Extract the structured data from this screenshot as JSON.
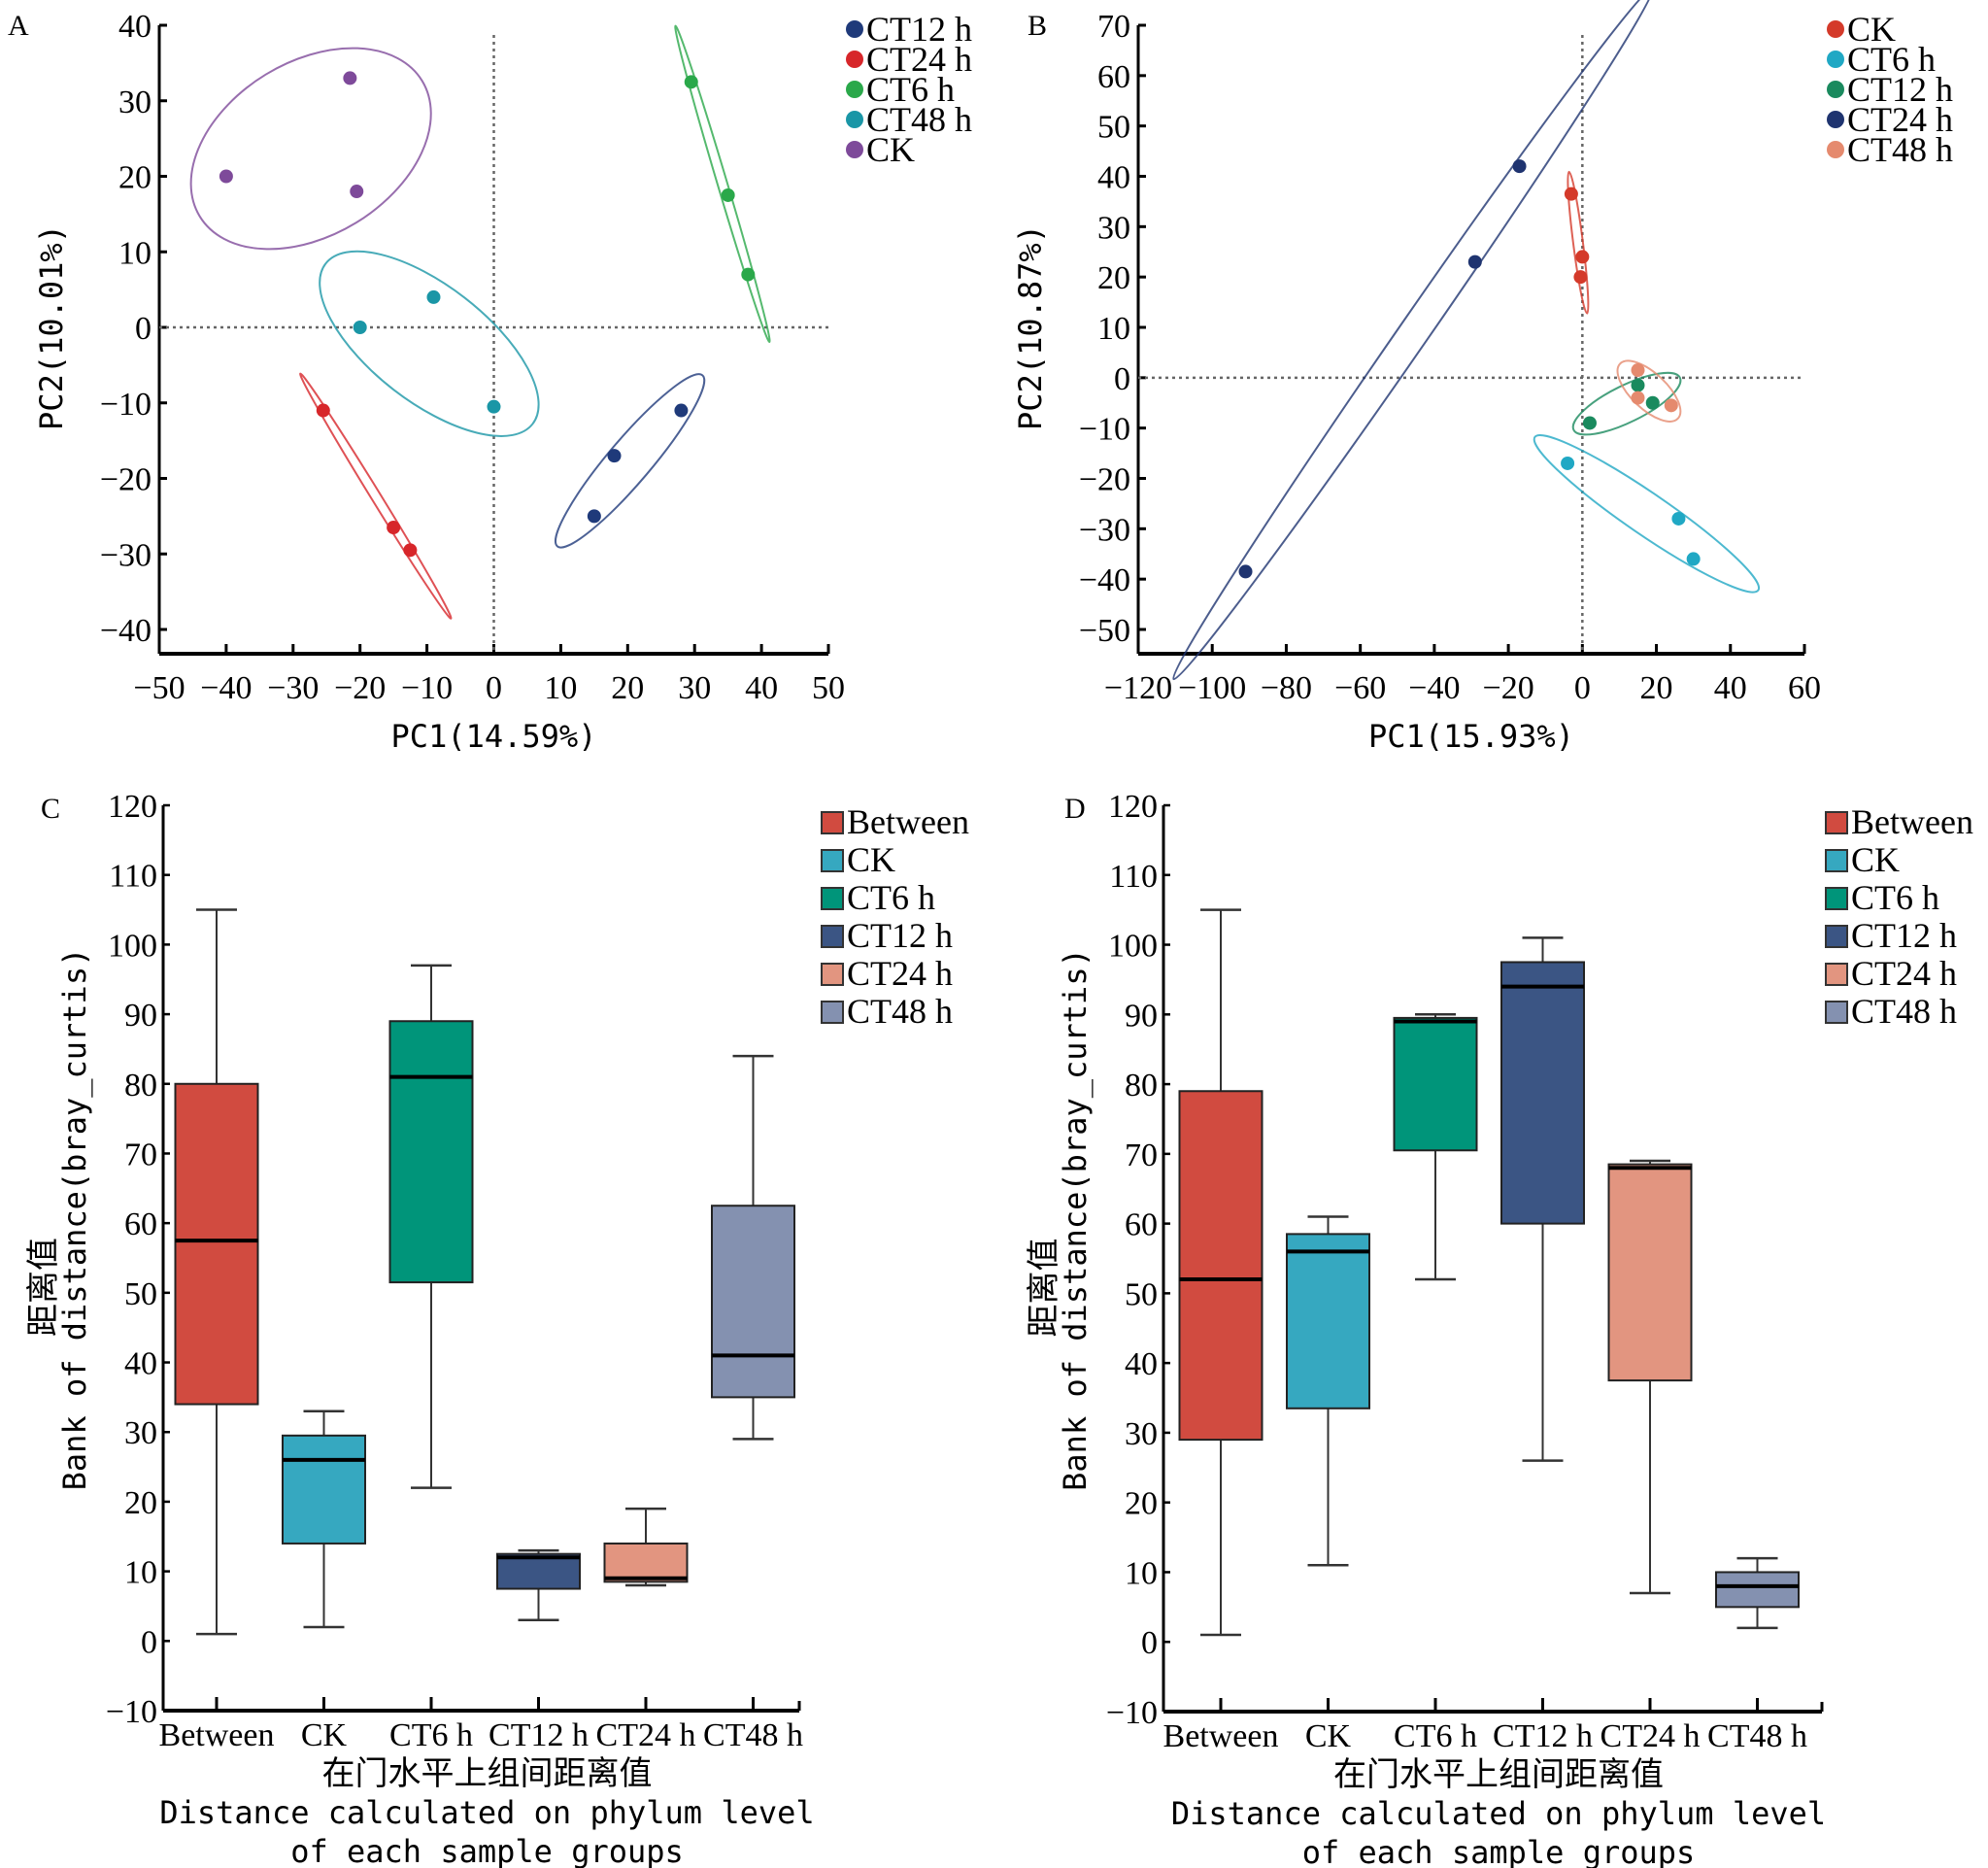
{
  "chart_data": [
    {
      "panel": "A",
      "type": "scatter",
      "title": "",
      "xlabel": "PC1(14.59%)",
      "ylabel": "PC2(10.01%)",
      "xlim": [
        -50,
        50
      ],
      "ylim": [
        -43,
        40
      ],
      "xticks": [
        -50,
        -40,
        -30,
        -20,
        -10,
        0,
        10,
        20,
        30,
        40,
        50
      ],
      "yticks": [
        40,
        30,
        20,
        10,
        0,
        -10,
        -20,
        -30,
        -40
      ],
      "legend_position": "top-right",
      "reference_lines": {
        "x": 0,
        "y": 0
      },
      "series": [
        {
          "name": "CT12 h",
          "color": "#1f3a7a",
          "points": [
            [
              18,
              -17
            ],
            [
              28,
              -11
            ],
            [
              15,
              -25
            ]
          ]
        },
        {
          "name": "CT24 h",
          "color": "#d7262a",
          "points": [
            [
              -25.5,
              -11
            ],
            [
              -15,
              -26.5
            ],
            [
              -12.5,
              -29.5
            ]
          ]
        },
        {
          "name": "CT6 h",
          "color": "#2aa84a",
          "points": [
            [
              29.5,
              32.5
            ],
            [
              35,
              17.5
            ],
            [
              38,
              7
            ]
          ]
        },
        {
          "name": "CT48 h",
          "color": "#1a96a6",
          "points": [
            [
              -9,
              4
            ],
            [
              -20,
              0
            ],
            [
              0,
              -10.5
            ]
          ]
        },
        {
          "name": "CK",
          "color": "#7e4a9a",
          "points": [
            [
              -21.5,
              33
            ],
            [
              -40,
              20
            ],
            [
              -20.5,
              18
            ]
          ]
        }
      ]
    },
    {
      "panel": "B",
      "type": "scatter",
      "title": "",
      "xlabel": "PC1(15.93%)",
      "ylabel": "PC2(10.87%)",
      "xlim": [
        -120,
        60
      ],
      "ylim": [
        -55,
        70
      ],
      "xticks": [
        -120,
        -100,
        -80,
        -60,
        -40,
        -20,
        0,
        20,
        40,
        60
      ],
      "yticks": [
        70,
        60,
        50,
        40,
        30,
        20,
        10,
        0,
        -10,
        -20,
        -30,
        -40,
        -50
      ],
      "legend_position": "top-right",
      "reference_lines": {
        "x": 0,
        "y": 0
      },
      "series": [
        {
          "name": "CK",
          "color": "#d43a2a",
          "points": [
            [
              -3,
              36.5
            ],
            [
              0,
              24
            ],
            [
              -0.5,
              20
            ]
          ]
        },
        {
          "name": "CT6 h",
          "color": "#20a8c4",
          "points": [
            [
              -4,
              -17
            ],
            [
              26,
              -28
            ],
            [
              30,
              -36
            ]
          ]
        },
        {
          "name": "CT12 h",
          "color": "#1a8a5e",
          "points": [
            [
              15,
              -1.5
            ],
            [
              19,
              -5
            ],
            [
              2,
              -9
            ]
          ]
        },
        {
          "name": "CT24 h",
          "color": "#1f3470",
          "points": [
            [
              -17,
              42
            ],
            [
              -29,
              23
            ],
            [
              -91,
              -38.5
            ]
          ]
        },
        {
          "name": "CT48 h",
          "color": "#e58a6e",
          "points": [
            [
              15,
              1.5
            ],
            [
              15,
              -4
            ],
            [
              24,
              -5.5
            ]
          ]
        }
      ]
    },
    {
      "panel": "C",
      "type": "box",
      "title": "",
      "xlabel_cn": "在门水平上组间距离值",
      "xlabel_en_line1": "Distance calculated on phylum level",
      "xlabel_en_line2": "of each sample groups",
      "ylabel_cn": "距离值",
      "ylabel_en": "Bank of distance(bray_curtis)",
      "ylim": [
        -10,
        120
      ],
      "yticks": [
        120,
        110,
        100,
        90,
        80,
        70,
        60,
        50,
        40,
        30,
        20,
        10,
        0,
        -10
      ],
      "legend_position": "top-right",
      "categories": [
        "Between",
        "CK",
        "CT6 h",
        "CT12 h",
        "CT24 h",
        "CT48 h"
      ],
      "series": [
        {
          "name": "Between",
          "color": "#d14b40",
          "min": 1,
          "q1": 34,
          "median": 57.5,
          "q3": 80,
          "max": 105
        },
        {
          "name": "CK",
          "color": "#36a8c0",
          "min": 2,
          "q1": 14,
          "median": 26,
          "q3": 29.5,
          "max": 33
        },
        {
          "name": "CT6 h",
          "color": "#00957a",
          "min": 22,
          "q1": 51.5,
          "median": 81,
          "q3": 89,
          "max": 97
        },
        {
          "name": "CT12 h",
          "color": "#3b5584",
          "min": 3,
          "q1": 7.5,
          "median": 12,
          "q3": 12.5,
          "max": 13
        },
        {
          "name": "CT24 h",
          "color": "#e29580",
          "min": 8,
          "q1": 8.5,
          "median": 9,
          "q3": 14,
          "max": 19
        },
        {
          "name": "CT48 h",
          "color": "#8491b0",
          "min": 29,
          "q1": 35,
          "median": 41,
          "q3": 62.5,
          "max": 84
        }
      ]
    },
    {
      "panel": "D",
      "type": "box",
      "title": "",
      "xlabel_cn": "在门水平上组间距离值",
      "xlabel_en_line1": "Distance calculated on phylum level",
      "xlabel_en_line2": "of each sample groups",
      "ylabel_cn": "距离值",
      "ylabel_en": "Bank of distance(bray_curtis)",
      "ylim": [
        -10,
        120
      ],
      "yticks": [
        120,
        110,
        100,
        90,
        80,
        70,
        60,
        50,
        40,
        30,
        20,
        10,
        0,
        -10
      ],
      "legend_position": "top-right",
      "categories": [
        "Between",
        "CK",
        "CT6 h",
        "CT12 h",
        "CT24 h",
        "CT48 h"
      ],
      "series": [
        {
          "name": "Between",
          "color": "#d14b40",
          "min": 1,
          "q1": 29,
          "median": 52,
          "q3": 79,
          "max": 105
        },
        {
          "name": "CK",
          "color": "#36a8c0",
          "min": 11,
          "q1": 33.5,
          "median": 56,
          "q3": 58.5,
          "max": 61
        },
        {
          "name": "CT6 h",
          "color": "#00957a",
          "min": 52,
          "q1": 70.5,
          "median": 89,
          "q3": 89.5,
          "max": 90
        },
        {
          "name": "CT12 h",
          "color": "#3b5584",
          "min": 26,
          "q1": 60,
          "median": 94,
          "q3": 97.5,
          "max": 101
        },
        {
          "name": "CT24 h",
          "color": "#e29580",
          "min": 7,
          "q1": 37.5,
          "median": 68,
          "q3": 68.5,
          "max": 69
        },
        {
          "name": "CT48 h",
          "color": "#8491b0",
          "min": 2,
          "q1": 5,
          "median": 8,
          "q3": 10,
          "max": 12
        }
      ]
    }
  ]
}
